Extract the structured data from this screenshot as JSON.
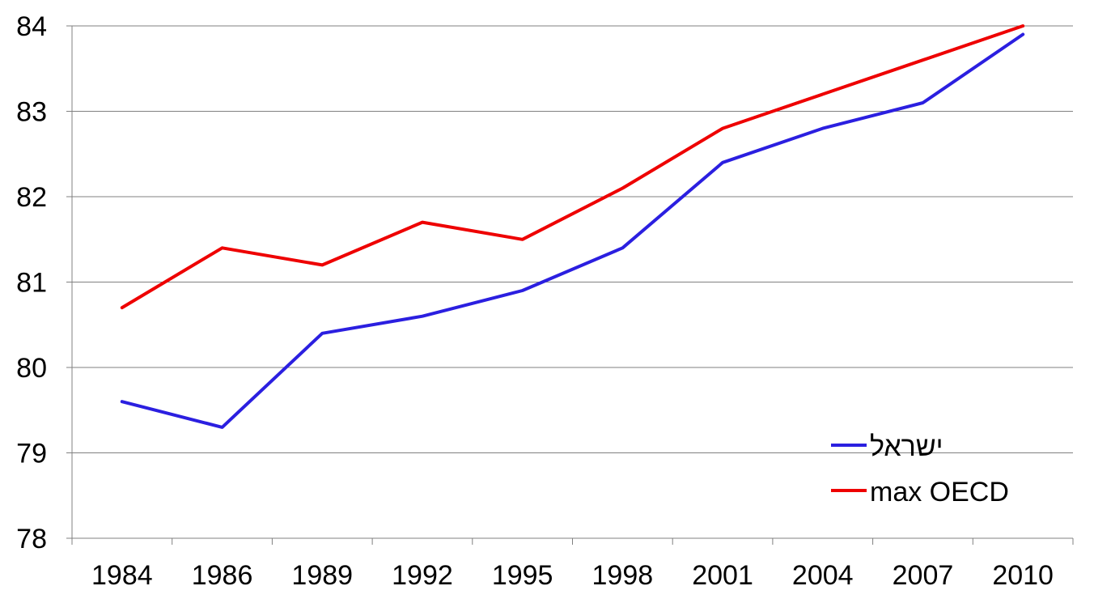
{
  "chart_data": {
    "type": "line",
    "categories": [
      "1984",
      "1986",
      "1989",
      "1992",
      "1995",
      "1998",
      "2001",
      "2004",
      "2007",
      "2010"
    ],
    "series": [
      {
        "name": "ישראל",
        "color": "#2b1fe0",
        "values": [
          79.6,
          79.3,
          80.4,
          80.6,
          80.9,
          81.4,
          82.4,
          82.8,
          83.1,
          83.9
        ]
      },
      {
        "name": "max OECD",
        "color": "#ee0000",
        "values": [
          80.7,
          81.4,
          81.2,
          81.7,
          81.5,
          82.1,
          82.8,
          83.2,
          83.6,
          84.0
        ]
      }
    ],
    "ylim": [
      78,
      84
    ],
    "yticks": [
      "78",
      "79",
      "80",
      "81",
      "82",
      "83",
      "84"
    ],
    "grid": true,
    "legend": "bottom-right"
  }
}
